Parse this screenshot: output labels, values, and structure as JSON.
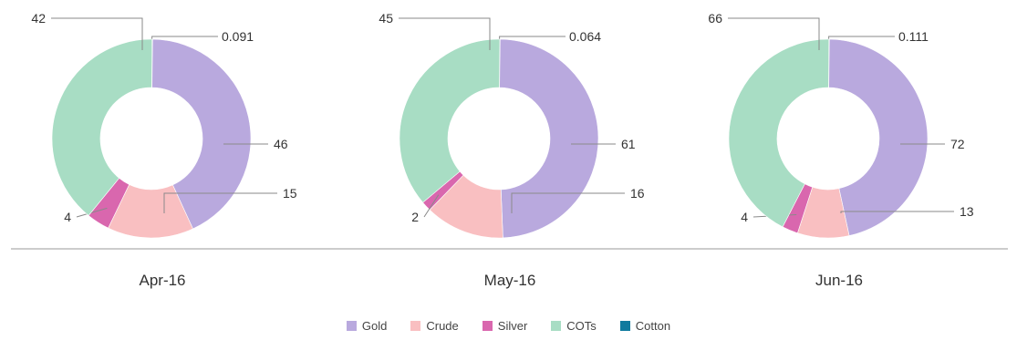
{
  "chart_data": {
    "type": "donut",
    "series_colors": {
      "Gold": "#B9A9DE",
      "Crude": "#F9BFC1",
      "Silver": "#D967AE",
      "COTs": "#A8DDC4",
      "Cotton": "#0F7A9E"
    },
    "legend": {
      "placement": "bottom-center",
      "entries": [
        "Gold",
        "Crude",
        "Silver",
        "COTs",
        "Cotton"
      ]
    },
    "charts": [
      {
        "category": "Apr-16",
        "slices": [
          {
            "name": "Cotton",
            "value": 0.091,
            "label": "0.091"
          },
          {
            "name": "Gold",
            "value": 46,
            "label": "46"
          },
          {
            "name": "Crude",
            "value": 15,
            "label": "15"
          },
          {
            "name": "Silver",
            "value": 4,
            "label": "4"
          },
          {
            "name": "COTs",
            "value": 42,
            "label": "42"
          }
        ]
      },
      {
        "category": "May-16",
        "slices": [
          {
            "name": "Cotton",
            "value": 0.064,
            "label": "0.064"
          },
          {
            "name": "Gold",
            "value": 61,
            "label": "61"
          },
          {
            "name": "Crude",
            "value": 16,
            "label": "16"
          },
          {
            "name": "Silver",
            "value": 2,
            "label": "2"
          },
          {
            "name": "COTs",
            "value": 45,
            "label": "45"
          }
        ]
      },
      {
        "category": "Jun-16",
        "slices": [
          {
            "name": "Cotton",
            "value": 0.111,
            "label": "0.111"
          },
          {
            "name": "Gold",
            "value": 72,
            "label": "72"
          },
          {
            "name": "Crude",
            "value": 13,
            "label": "13"
          },
          {
            "name": "Silver",
            "value": 4,
            "label": "4"
          },
          {
            "name": "COTs",
            "value": 66,
            "label": "66"
          }
        ]
      }
    ]
  }
}
